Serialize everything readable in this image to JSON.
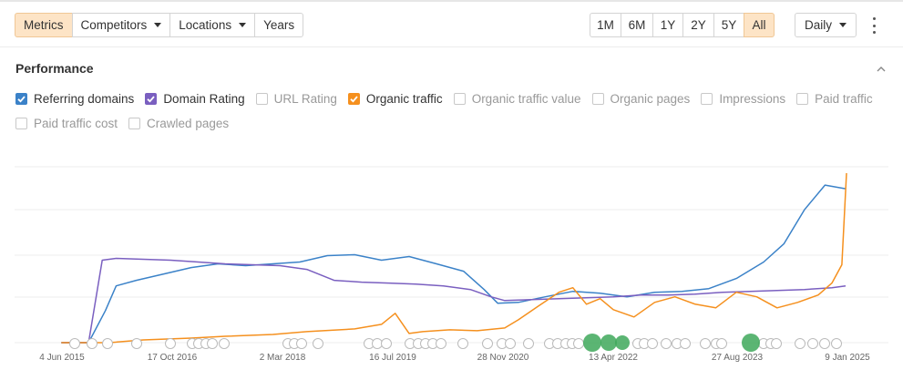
{
  "toolbar": {
    "tabs": [
      {
        "label": "Metrics",
        "active": true,
        "dropdown": false
      },
      {
        "label": "Competitors",
        "active": false,
        "dropdown": true
      },
      {
        "label": "Locations",
        "active": false,
        "dropdown": true
      },
      {
        "label": "Years",
        "active": false,
        "dropdown": false
      }
    ],
    "ranges": [
      {
        "label": "1M",
        "active": false
      },
      {
        "label": "6M",
        "active": false
      },
      {
        "label": "1Y",
        "active": false
      },
      {
        "label": "2Y",
        "active": false
      },
      {
        "label": "5Y",
        "active": false
      },
      {
        "label": "All",
        "active": true
      }
    ],
    "granularity": "Daily",
    "more_icon": "kebab-vertical-icon",
    "colors": {
      "active_bg": "#fde4c6",
      "border": "#d4d4d4"
    }
  },
  "section": {
    "title": "Performance",
    "collapse_icon": "chevron-up-icon"
  },
  "metrics": [
    {
      "label": "Referring domains",
      "checked": true,
      "color": "#3b82c8"
    },
    {
      "label": "Domain Rating",
      "checked": true,
      "color": "#7a5fc0"
    },
    {
      "label": "URL Rating",
      "checked": false,
      "color": ""
    },
    {
      "label": "Organic traffic",
      "checked": true,
      "color": "#f5901e"
    },
    {
      "label": "Organic traffic value",
      "checked": false,
      "color": ""
    },
    {
      "label": "Organic pages",
      "checked": false,
      "color": ""
    },
    {
      "label": "Impressions",
      "checked": false,
      "color": ""
    },
    {
      "label": "Paid traffic",
      "checked": false,
      "color": ""
    },
    {
      "label": "Paid traffic cost",
      "checked": false,
      "color": ""
    },
    {
      "label": "Crawled pages",
      "checked": false,
      "color": ""
    }
  ],
  "chart_data": {
    "type": "line",
    "x_tick_labels": [
      "4 Jun 2015",
      "17 Oct 2016",
      "2 Mar 2018",
      "16 Jul 2019",
      "28 Nov 2020",
      "13 Apr 2022",
      "27 Aug 2023",
      "9 Jan 2025"
    ],
    "grid": true,
    "y_axis_labels_shown": false,
    "series": [
      {
        "name": "Referring domains",
        "color": "#3b82c8",
        "x": [
          "2015-06-01",
          "2015-10-01",
          "2015-12-15",
          "2016-02-01",
          "2016-05-01",
          "2016-09-01",
          "2017-01-01",
          "2017-05-01",
          "2017-09-01",
          "2018-01-01",
          "2018-05-01",
          "2018-09-01",
          "2019-01-01",
          "2019-05-01",
          "2019-09-01",
          "2020-01-01",
          "2020-05-01",
          "2020-08-01",
          "2020-10-01",
          "2021-01-01",
          "2021-05-01",
          "2021-09-01",
          "2022-01-01",
          "2022-05-01",
          "2022-09-01",
          "2023-01-01",
          "2023-05-01",
          "2023-09-01",
          "2024-01-01",
          "2024-04-01",
          "2024-07-01",
          "2024-10-01",
          "2025-01-01"
        ],
        "values": [
          0,
          0,
          35,
          62,
          68,
          75,
          82,
          86,
          84,
          86,
          88,
          95,
          96,
          90,
          94,
          86,
          78,
          58,
          43,
          44,
          50,
          56,
          54,
          50,
          55,
          56,
          59,
          70,
          88,
          108,
          145,
          172,
          168
        ]
      },
      {
        "name": "Domain Rating",
        "color": "#7a5fc0",
        "x": [
          "2015-06-01",
          "2015-10-01",
          "2015-12-01",
          "2016-02-01",
          "2016-06-01",
          "2016-10-01",
          "2017-02-01",
          "2017-06-01",
          "2017-10-01",
          "2018-02-01",
          "2018-06-01",
          "2018-10-01",
          "2019-02-01",
          "2019-06-01",
          "2019-10-01",
          "2020-02-01",
          "2020-06-01",
          "2020-09-01",
          "2020-11-01",
          "2021-03-01",
          "2021-07-01",
          "2021-11-01",
          "2022-03-01",
          "2022-07-01",
          "2022-11-01",
          "2023-03-01",
          "2023-07-01",
          "2023-11-01",
          "2024-03-01",
          "2024-07-01",
          "2024-11-01",
          "2025-01-01"
        ],
        "values": [
          0,
          0,
          90,
          92,
          91,
          90,
          88,
          86,
          85,
          84,
          80,
          68,
          66,
          65,
          64,
          62,
          58,
          50,
          46,
          47,
          48,
          49,
          50,
          52,
          52,
          53,
          55,
          56,
          57,
          58,
          60,
          62
        ]
      },
      {
        "name": "Organic traffic",
        "color": "#f5901e",
        "x": [
          "2015-06-01",
          "2016-01-01",
          "2016-06-01",
          "2017-01-01",
          "2017-06-01",
          "2018-01-01",
          "2018-06-01",
          "2019-01-01",
          "2019-05-01",
          "2019-07-01",
          "2019-09-01",
          "2019-11-01",
          "2020-03-01",
          "2020-07-01",
          "2020-11-01",
          "2021-01-01",
          "2021-04-01",
          "2021-07-01",
          "2021-09-01",
          "2021-11-01",
          "2022-01-01",
          "2022-03-01",
          "2022-06-01",
          "2022-09-01",
          "2022-12-01",
          "2023-03-01",
          "2023-06-01",
          "2023-09-01",
          "2023-12-01",
          "2024-03-01",
          "2024-06-01",
          "2024-09-01",
          "2024-11-01",
          "2024-12-15",
          "2025-01-05"
        ],
        "values": [
          0,
          0,
          3,
          5,
          7,
          9,
          12,
          15,
          20,
          32,
          10,
          12,
          14,
          13,
          16,
          25,
          40,
          55,
          60,
          42,
          48,
          36,
          28,
          44,
          50,
          42,
          38,
          55,
          50,
          38,
          44,
          52,
          65,
          85,
          185
        ]
      }
    ],
    "annotations_row": "event markers along the x axis (G = Google updates, green = major events)"
  }
}
